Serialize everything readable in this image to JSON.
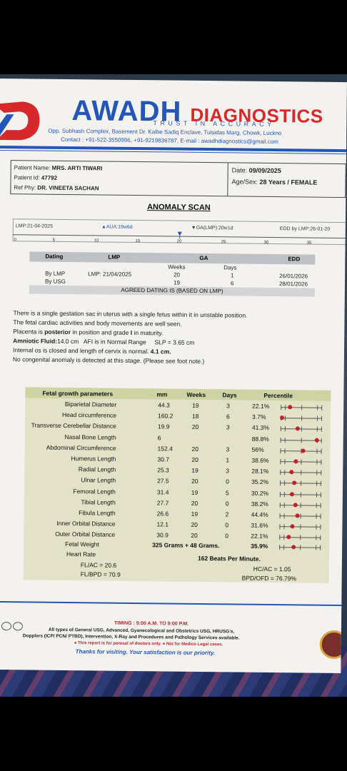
{
  "header": {
    "brand_main": "AWADH",
    "brand_sub": "DIAGNOSTICS",
    "tagline": "TRUST IN ACCURACY",
    "address": "Opp. Subhash Complex, Basement Dr. Kalbe Sadiq Enclave, Tulsidas Marg, Chowk, Luckno",
    "contact": "Contact : +91-522-3550996, +91-9219836787, E-mail : awadhdiagnostics@gmail.com"
  },
  "patient": {
    "name_label": "Patient Name:",
    "name": "MRS. ARTI TIWARI",
    "id_label": "Patient Id:",
    "id": "47792",
    "ref_label": "Ref Phy:",
    "ref": "DR. VINEETA SACHAN",
    "date_label": "Date:",
    "date": "09/09/2025",
    "agesex_label": "Age/Sex:",
    "agesex": "28 Years / FEMALE"
  },
  "report_title": "ANOMALY SCAN",
  "timeline": {
    "lmp": "LMP:21-04-2025",
    "aua": "▲AUA:19w6d",
    "ga": "▼GA(LMP):20w1d",
    "edd": "EDD by LMP:26-01-20",
    "ticks": [
      "0",
      "5",
      "10",
      "15",
      "20",
      "25",
      "30",
      "35"
    ]
  },
  "dating": {
    "headers": [
      "Dating",
      "LMP",
      "GA",
      "EDD"
    ],
    "sub_weeks": "Weeks",
    "sub_days": "Days",
    "rows": [
      {
        "label": "By LMP",
        "lmp": "LMP: 21/04/2025",
        "weeks": "20",
        "days": "1",
        "edd": "26/01/2026"
      },
      {
        "label": "By USG",
        "lmp": "",
        "weeks": "19",
        "days": "6",
        "edd": "28/01/2026"
      }
    ],
    "agreed": "AGREED DATING IS (BASED ON LMP)"
  },
  "findings": {
    "l1": "There is a single gestation sac in uterus with a single fetus within it in unstable position.",
    "l2": "The fetal cardiac activities and body movements are well seen.",
    "l3a": "Placenta is ",
    "l3b": "posterior",
    "l3c": " in position and grade ",
    "l3d": "I",
    "l3e": " in maturity.",
    "l4a": "Amniotic Fluid:",
    "l4b": "14.0 cm",
    "l4c": "   AFI is in Normal Range     SLP = 3.65 cm",
    "l5a": "Internal os is closed and length of cervix is normal. ",
    "l5b": "4.1 cm.",
    "l6": "No congenital anomaly is detected at this stage. (Please see foot note.)"
  },
  "growth": {
    "headers": [
      "Fetal growth parameters",
      "mm",
      "Weeks",
      "Days",
      "Percentile"
    ],
    "rows": [
      {
        "name": "Biparietal Diameter",
        "mm": "44.3",
        "weeks": "19",
        "days": "3",
        "pct": "22.1%",
        "p": 22.1
      },
      {
        "name": "Head circumference",
        "mm": "160.2",
        "weeks": "18",
        "days": "6",
        "pct": "3.7%",
        "p": 3.7
      },
      {
        "name": "Transverse Cerebellar Distance",
        "mm": "19.9",
        "weeks": "20",
        "days": "3",
        "pct": "41.3%",
        "p": 41.3
      },
      {
        "name": "Nasal Bone Length",
        "mm": "6",
        "weeks": "",
        "days": "",
        "pct": "88.8%",
        "p": 88.8
      },
      {
        "name": "Abdominal Circumference",
        "mm": "152.4",
        "weeks": "20",
        "days": "3",
        "pct": "56%",
        "p": 56
      },
      {
        "name": "Humerus Length",
        "mm": "30.7",
        "weeks": "20",
        "days": "1",
        "pct": "38.6%",
        "p": 38.6
      },
      {
        "name": "Radial Length",
        "mm": "25.3",
        "weeks": "19",
        "days": "3",
        "pct": "28.1%",
        "p": 28.1
      },
      {
        "name": "Ulnar Length",
        "mm": "27.5",
        "weeks": "20",
        "days": "0",
        "pct": "35.2%",
        "p": 35.2
      },
      {
        "name": "Femoral Length",
        "mm": "31.4",
        "weeks": "19",
        "days": "5",
        "pct": "30.2%",
        "p": 30.2
      },
      {
        "name": "Tibial Length",
        "mm": "27.7",
        "weeks": "20",
        "days": "0",
        "pct": "38.2%",
        "p": 38.2
      },
      {
        "name": "Fibula Length",
        "mm": "26.6",
        "weeks": "19",
        "days": "2",
        "pct": "44.4%",
        "p": 44.4
      },
      {
        "name": "Inner Orbital Distance",
        "mm": "12.1",
        "weeks": "20",
        "days": "0",
        "pct": "31.6%",
        "p": 31.6
      },
      {
        "name": "Outer Orbital Distance",
        "mm": "30.9",
        "weeks": "20",
        "days": "0",
        "pct": "22.1%",
        "p": 22.1
      }
    ],
    "fetal_weight_label": "Fetal Weight",
    "fetal_weight": "325 Grams + 48 Grams.",
    "fetal_weight_pct": "35.9%",
    "fetal_weight_p": 35.9,
    "heart_rate_label": "Heart Rate",
    "heart_rate": "162 Beats Per Minute.",
    "fl_ac": "FL/AC = 20.6",
    "fl_bpd": "FL/BPD = 70.9",
    "hc_ac": "HC/AC = 1.05",
    "bpd_ofd": "BPD/OFD = 76.79%"
  },
  "footer": {
    "timing": "TIMING : 9:00 A.M. TO 9:00 P.M.",
    "services1": "All types of General USG, Advanced, Gyanecological and Obstetrics USG, HRUSG's,",
    "services2": "Dopplers (ICP/ PCN/ PTBD), Intervention, X-Ray and Procedures and Pathology Services available.",
    "note": "● This report is for perusal of doctors only. ● Not for Medico Legal cases.",
    "thanks": "Thanks for visiting. Your satisfaction is our priority."
  },
  "colors": {
    "brand_blue": "#2455b8",
    "brand_red": "#d8282b",
    "table_bg": "#e4e2c6",
    "table_header": "#cdd3a3"
  }
}
